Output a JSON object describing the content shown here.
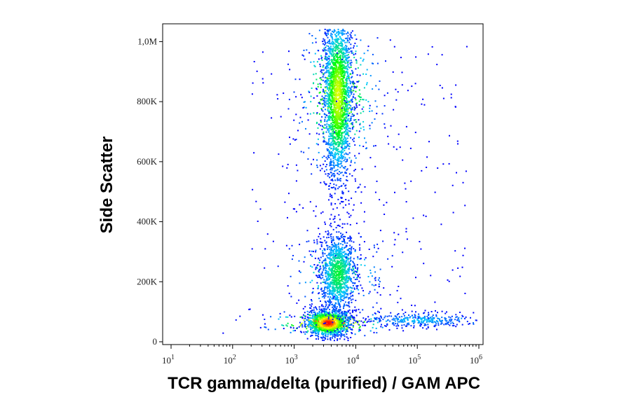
{
  "chart_data": {
    "type": "scatter",
    "subtype": "flow-cytometry density dot plot",
    "xlabel": "TCR gamma/delta (purified) / GAM APC",
    "ylabel": "Side Scatter",
    "x_scale": "log",
    "xlim": [
      10,
      1000000
    ],
    "x_ticks": [
      {
        "value": 10,
        "base": "10",
        "exp": "1"
      },
      {
        "value": 100,
        "base": "10",
        "exp": "2"
      },
      {
        "value": 1000,
        "base": "10",
        "exp": "3"
      },
      {
        "value": 10000,
        "base": "10",
        "exp": "4"
      },
      {
        "value": 100000,
        "base": "10",
        "exp": "5"
      },
      {
        "value": 1000000,
        "base": "10",
        "exp": "6"
      }
    ],
    "y_scale": "linear",
    "ylim": [
      0,
      1050000
    ],
    "y_ticks": [
      {
        "value": 0,
        "label": "0"
      },
      {
        "value": 200000,
        "label": "200K"
      },
      {
        "value": 400000,
        "label": "400K"
      },
      {
        "value": 600000,
        "label": "600K"
      },
      {
        "value": 800000,
        "label": "800K"
      },
      {
        "value": 1000000,
        "label": "1,0M"
      }
    ],
    "grid": false,
    "legend": "none",
    "color_scale": [
      "#0000ff",
      "#00c8ff",
      "#00ff00",
      "#ffff00",
      "#ff0000"
    ],
    "populations": [
      {
        "x_center": 3500,
        "y_center": 65000,
        "x_spread_log": 0.18,
        "y_spread": 22000,
        "n": 1400,
        "peak_color": "#ff0000"
      },
      {
        "x_center": 5000,
        "y_center": 230000,
        "x_spread_log": 0.15,
        "y_spread": 70000,
        "n": 1300,
        "peak_color": "#00ffc8"
      },
      {
        "x_center": 5000,
        "y_center": 820000,
        "x_spread_log": 0.12,
        "y_spread": 140000,
        "n": 2600,
        "peak_color": "#c8ff00"
      },
      {
        "x_center": 100000,
        "y_center": 75000,
        "x_spread_log": 0.45,
        "y_spread": 12000,
        "n": 320,
        "peak_color": "#00a0ff"
      }
    ]
  }
}
